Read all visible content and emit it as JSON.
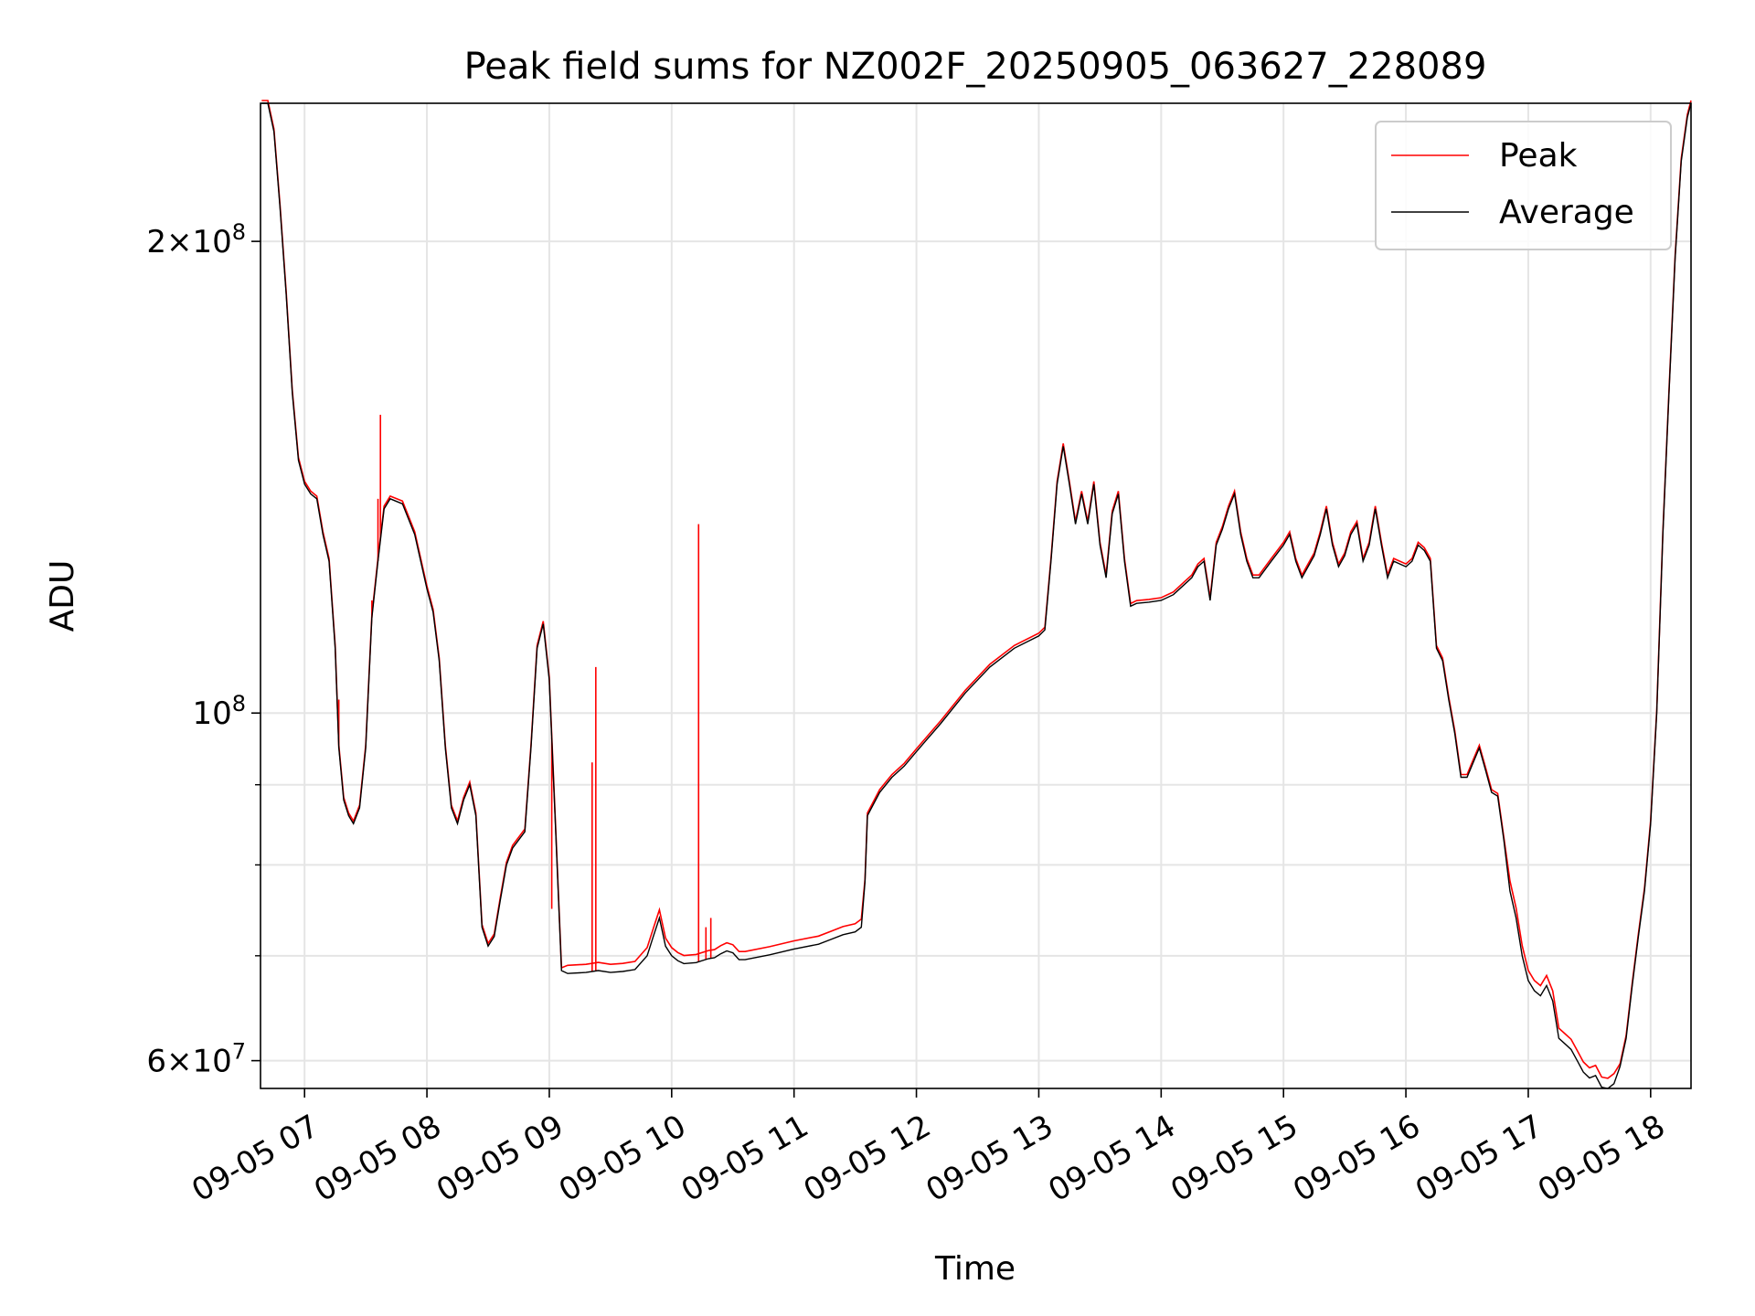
{
  "chart_data": {
    "type": "line",
    "title": "Peak field sums for NZ002F_20250905_063627_228089",
    "xlabel": "Time",
    "ylabel": "ADU",
    "x_unit": "hours (2025-09-05)",
    "xlim": [
      6.64,
      18.33
    ],
    "ylim": [
      57600000,
      245000000
    ],
    "yscale": "log",
    "grid": true,
    "legend_position": "top-right",
    "x_ticks": [
      {
        "value": 7,
        "label": "09-05 07"
      },
      {
        "value": 8,
        "label": "09-05 08"
      },
      {
        "value": 9,
        "label": "09-05 09"
      },
      {
        "value": 10,
        "label": "09-05 10"
      },
      {
        "value": 11,
        "label": "09-05 11"
      },
      {
        "value": 12,
        "label": "09-05 12"
      },
      {
        "value": 13,
        "label": "09-05 13"
      },
      {
        "value": 14,
        "label": "09-05 14"
      },
      {
        "value": 15,
        "label": "09-05 15"
      },
      {
        "value": 16,
        "label": "09-05 16"
      },
      {
        "value": 17,
        "label": "09-05 17"
      },
      {
        "value": 18,
        "label": "09-05 18"
      }
    ],
    "y_ticks": [
      {
        "value": 60000000,
        "base": "6",
        "exp": "7"
      },
      {
        "value": 100000000,
        "base": "",
        "exp": "8"
      },
      {
        "value": 200000000,
        "base": "2",
        "exp": "8"
      }
    ],
    "y_minor_ticks": [
      70000000,
      80000000,
      90000000
    ],
    "series": [
      {
        "name": "Average",
        "color": "#000000",
        "points": [
          [
            6.65,
            245000000
          ],
          [
            6.7,
            245000000
          ],
          [
            6.75,
            235000000
          ],
          [
            6.8,
            210000000
          ],
          [
            6.85,
            185000000
          ],
          [
            6.9,
            160000000
          ],
          [
            6.95,
            145000000
          ],
          [
            7.0,
            140000000
          ],
          [
            7.05,
            138000000
          ],
          [
            7.1,
            137000000
          ],
          [
            7.15,
            130000000
          ],
          [
            7.2,
            125000000
          ],
          [
            7.25,
            110000000
          ],
          [
            7.28,
            95000000
          ],
          [
            7.32,
            88000000
          ],
          [
            7.36,
            86000000
          ],
          [
            7.4,
            85000000
          ],
          [
            7.45,
            87000000
          ],
          [
            7.5,
            95000000
          ],
          [
            7.55,
            115000000
          ],
          [
            7.6,
            125000000
          ],
          [
            7.65,
            135000000
          ],
          [
            7.7,
            137000000
          ],
          [
            7.8,
            136000000
          ],
          [
            7.9,
            130000000
          ],
          [
            8.0,
            120000000
          ],
          [
            8.05,
            116000000
          ],
          [
            8.1,
            108000000
          ],
          [
            8.15,
            95000000
          ],
          [
            8.2,
            87000000
          ],
          [
            8.25,
            85000000
          ],
          [
            8.3,
            88000000
          ],
          [
            8.35,
            90000000
          ],
          [
            8.4,
            86000000
          ],
          [
            8.45,
            73000000
          ],
          [
            8.5,
            71000000
          ],
          [
            8.55,
            72000000
          ],
          [
            8.6,
            76000000
          ],
          [
            8.65,
            80000000
          ],
          [
            8.7,
            82000000
          ],
          [
            8.8,
            84000000
          ],
          [
            8.85,
            95000000
          ],
          [
            8.9,
            110000000
          ],
          [
            8.95,
            114000000
          ],
          [
            9.0,
            105000000
          ],
          [
            9.05,
            85000000
          ],
          [
            9.1,
            68500000
          ],
          [
            9.15,
            68200000
          ],
          [
            9.3,
            68300000
          ],
          [
            9.4,
            68500000
          ],
          [
            9.5,
            68300000
          ],
          [
            9.6,
            68400000
          ],
          [
            9.7,
            68600000
          ],
          [
            9.8,
            70000000
          ],
          [
            9.85,
            72000000
          ],
          [
            9.9,
            74000000
          ],
          [
            9.95,
            71000000
          ],
          [
            10.0,
            70000000
          ],
          [
            10.05,
            69500000
          ],
          [
            10.1,
            69200000
          ],
          [
            10.2,
            69300000
          ],
          [
            10.3,
            69700000
          ],
          [
            10.35,
            69800000
          ],
          [
            10.4,
            70200000
          ],
          [
            10.45,
            70500000
          ],
          [
            10.5,
            70300000
          ],
          [
            10.55,
            69600000
          ],
          [
            10.6,
            69600000
          ],
          [
            10.8,
            70100000
          ],
          [
            11.0,
            70700000
          ],
          [
            11.2,
            71200000
          ],
          [
            11.3,
            71700000
          ],
          [
            11.4,
            72200000
          ],
          [
            11.5,
            72500000
          ],
          [
            11.55,
            73000000
          ],
          [
            11.58,
            78000000
          ],
          [
            11.6,
            86000000
          ],
          [
            11.7,
            89000000
          ],
          [
            11.8,
            91000000
          ],
          [
            11.9,
            92500000
          ],
          [
            12.0,
            94500000
          ],
          [
            12.2,
            98500000
          ],
          [
            12.4,
            103000000
          ],
          [
            12.6,
            107000000
          ],
          [
            12.8,
            110000000
          ],
          [
            13.0,
            112000000
          ],
          [
            13.05,
            113000000
          ],
          [
            13.1,
            125000000
          ],
          [
            13.15,
            140000000
          ],
          [
            13.2,
            148000000
          ],
          [
            13.25,
            140000000
          ],
          [
            13.3,
            132000000
          ],
          [
            13.35,
            138000000
          ],
          [
            13.4,
            132000000
          ],
          [
            13.45,
            140000000
          ],
          [
            13.5,
            128000000
          ],
          [
            13.55,
            122000000
          ],
          [
            13.6,
            134000000
          ],
          [
            13.65,
            138000000
          ],
          [
            13.7,
            125000000
          ],
          [
            13.75,
            117000000
          ],
          [
            13.8,
            117500000
          ],
          [
            13.9,
            117700000
          ],
          [
            14.0,
            118000000
          ],
          [
            14.1,
            119000000
          ],
          [
            14.2,
            121000000
          ],
          [
            14.25,
            122000000
          ],
          [
            14.3,
            124000000
          ],
          [
            14.35,
            125000000
          ],
          [
            14.4,
            118000000
          ],
          [
            14.45,
            128000000
          ],
          [
            14.5,
            131000000
          ],
          [
            14.55,
            135000000
          ],
          [
            14.6,
            138000000
          ],
          [
            14.65,
            130000000
          ],
          [
            14.7,
            125000000
          ],
          [
            14.75,
            122000000
          ],
          [
            14.8,
            122000000
          ],
          [
            14.9,
            125000000
          ],
          [
            15.0,
            128000000
          ],
          [
            15.05,
            130000000
          ],
          [
            15.1,
            125000000
          ],
          [
            15.15,
            122000000
          ],
          [
            15.2,
            124000000
          ],
          [
            15.25,
            126000000
          ],
          [
            15.3,
            130000000
          ],
          [
            15.35,
            135000000
          ],
          [
            15.4,
            128000000
          ],
          [
            15.45,
            124000000
          ],
          [
            15.5,
            126000000
          ],
          [
            15.55,
            130000000
          ],
          [
            15.6,
            132000000
          ],
          [
            15.65,
            125000000
          ],
          [
            15.7,
            128000000
          ],
          [
            15.75,
            135000000
          ],
          [
            15.8,
            128000000
          ],
          [
            15.85,
            122000000
          ],
          [
            15.9,
            125000000
          ],
          [
            16.0,
            124000000
          ],
          [
            16.05,
            125000000
          ],
          [
            16.1,
            128000000
          ],
          [
            16.15,
            127000000
          ],
          [
            16.2,
            125000000
          ],
          [
            16.25,
            110000000
          ],
          [
            16.3,
            108000000
          ],
          [
            16.35,
            102000000
          ],
          [
            16.4,
            97000000
          ],
          [
            16.45,
            91000000
          ],
          [
            16.5,
            91000000
          ],
          [
            16.55,
            93000000
          ],
          [
            16.6,
            95000000
          ],
          [
            16.65,
            92000000
          ],
          [
            16.7,
            89000000
          ],
          [
            16.75,
            88500000
          ],
          [
            16.8,
            83000000
          ],
          [
            16.85,
            77000000
          ],
          [
            16.9,
            74000000
          ],
          [
            16.95,
            70000000
          ],
          [
            17.0,
            67500000
          ],
          [
            17.05,
            66500000
          ],
          [
            17.1,
            66000000
          ],
          [
            17.15,
            67000000
          ],
          [
            17.2,
            65500000
          ],
          [
            17.25,
            62000000
          ],
          [
            17.3,
            61500000
          ],
          [
            17.35,
            61000000
          ],
          [
            17.4,
            60000000
          ],
          [
            17.45,
            59000000
          ],
          [
            17.5,
            58500000
          ],
          [
            17.55,
            58700000
          ],
          [
            17.6,
            57700000
          ],
          [
            17.65,
            57600000
          ],
          [
            17.7,
            58000000
          ],
          [
            17.75,
            59500000
          ],
          [
            17.8,
            62000000
          ],
          [
            17.85,
            67000000
          ],
          [
            17.9,
            72000000
          ],
          [
            17.95,
            77000000
          ],
          [
            18.0,
            85000000
          ],
          [
            18.05,
            100000000
          ],
          [
            18.1,
            130000000
          ],
          [
            18.15,
            160000000
          ],
          [
            18.2,
            195000000
          ],
          [
            18.25,
            225000000
          ],
          [
            18.3,
            240000000
          ],
          [
            18.33,
            245000000
          ]
        ]
      },
      {
        "name": "Peak",
        "color": "#ff0000",
        "spikes": [
          [
            7.28,
            102000000
          ],
          [
            7.55,
            118000000
          ],
          [
            7.6,
            137000000
          ],
          [
            7.62,
            155000000
          ],
          [
            9.02,
            75000000
          ],
          [
            9.35,
            93000000
          ],
          [
            9.38,
            107000000
          ],
          [
            10.22,
            132000000
          ],
          [
            10.28,
            73000000
          ],
          [
            10.32,
            74000000
          ]
        ]
      }
    ]
  }
}
